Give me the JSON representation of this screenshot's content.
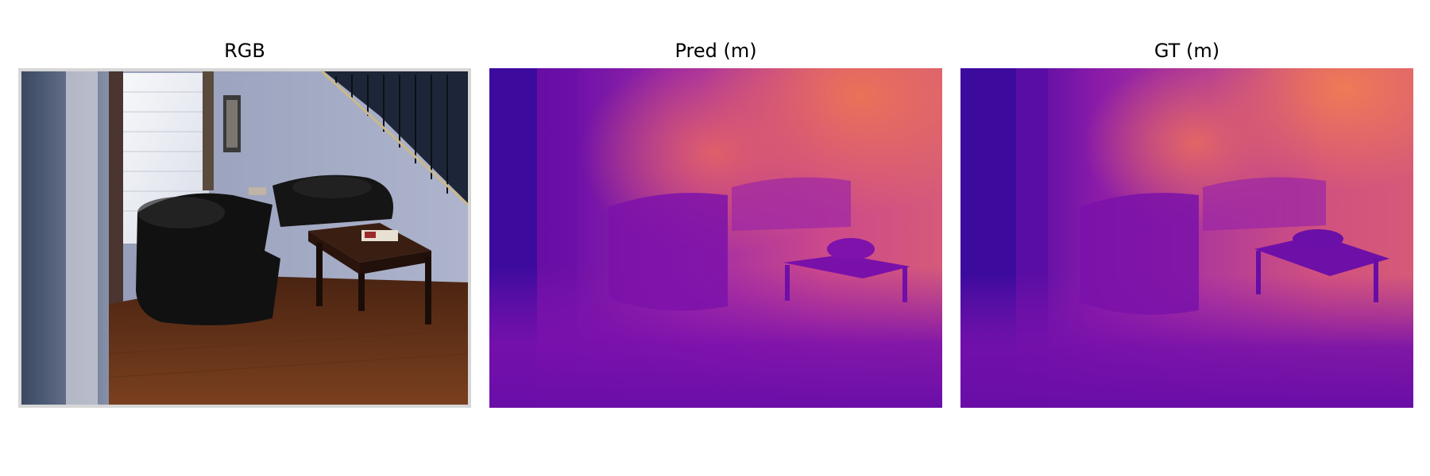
{
  "panels": [
    {
      "title": "RGB"
    },
    {
      "title": "Pred (m)"
    },
    {
      "title": "GT (m)"
    }
  ],
  "colors": {
    "background": "#ffffff",
    "depth_near": "#3d0a9e",
    "depth_mid": "#9a1aa8",
    "depth_far": "#e3645e",
    "rgb_wall": "#a4acc6",
    "rgb_floor": "#6b3418",
    "rgb_sofa": "#131313",
    "rgb_border": "#d6d6d6"
  }
}
